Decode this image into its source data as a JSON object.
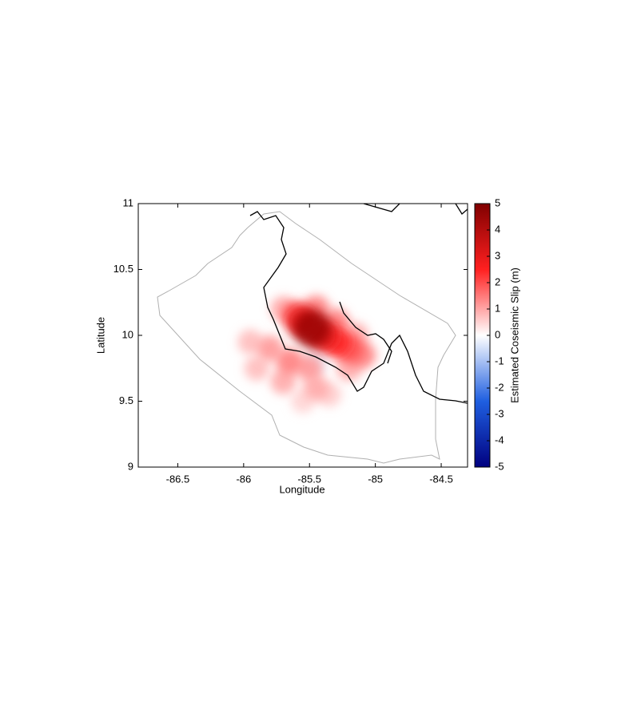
{
  "chart_data": {
    "type": "map",
    "x_label": "Longitude",
    "y_label": "Latitude",
    "xlim": [
      -86.8,
      -84.3
    ],
    "xticks": [
      -86.5,
      -86,
      -85.5,
      -85,
      -84.5
    ],
    "ylim": [
      9,
      11
    ],
    "yticks": [
      9,
      9.5,
      10,
      10.5,
      11
    ],
    "colorbar": {
      "label": "Estimated Coseismic Slip (m)",
      "clim": [
        -5,
        5
      ],
      "ticks": [
        -5,
        -4,
        -3,
        -2,
        -1,
        0,
        1,
        2,
        3,
        4,
        5
      ],
      "colormap": [
        "#000080",
        "#1f5fe0",
        "#ffffff",
        "#ff2020",
        "#800000"
      ]
    },
    "slip": {
      "x": [
        -85.48,
        -85.4,
        -85.55,
        -85.3,
        -85.2,
        -85.6,
        -85.45,
        -85.7,
        -85.1,
        -85.2,
        -85.5,
        -85.65,
        -85.8,
        -85.95,
        -85.9,
        -85.7,
        -85.45,
        -85.35,
        -85.55,
        -85.3,
        -85.15,
        -85.45
      ],
      "y": [
        10.05,
        10.0,
        10.1,
        9.95,
        9.9,
        10.15,
        10.2,
        10.2,
        9.85,
        9.75,
        9.75,
        9.8,
        9.9,
        9.95,
        9.75,
        9.65,
        9.6,
        9.55,
        9.5,
        10.1,
        10.0,
        9.8
      ],
      "values": [
        4.5,
        3,
        3,
        2.5,
        2,
        2,
        1.5,
        1,
        1.5,
        1,
        1.2,
        1.5,
        1.2,
        0.8,
        0.8,
        1,
        1,
        0.6,
        0.5,
        1.5,
        1,
        -0.3
      ]
    }
  }
}
